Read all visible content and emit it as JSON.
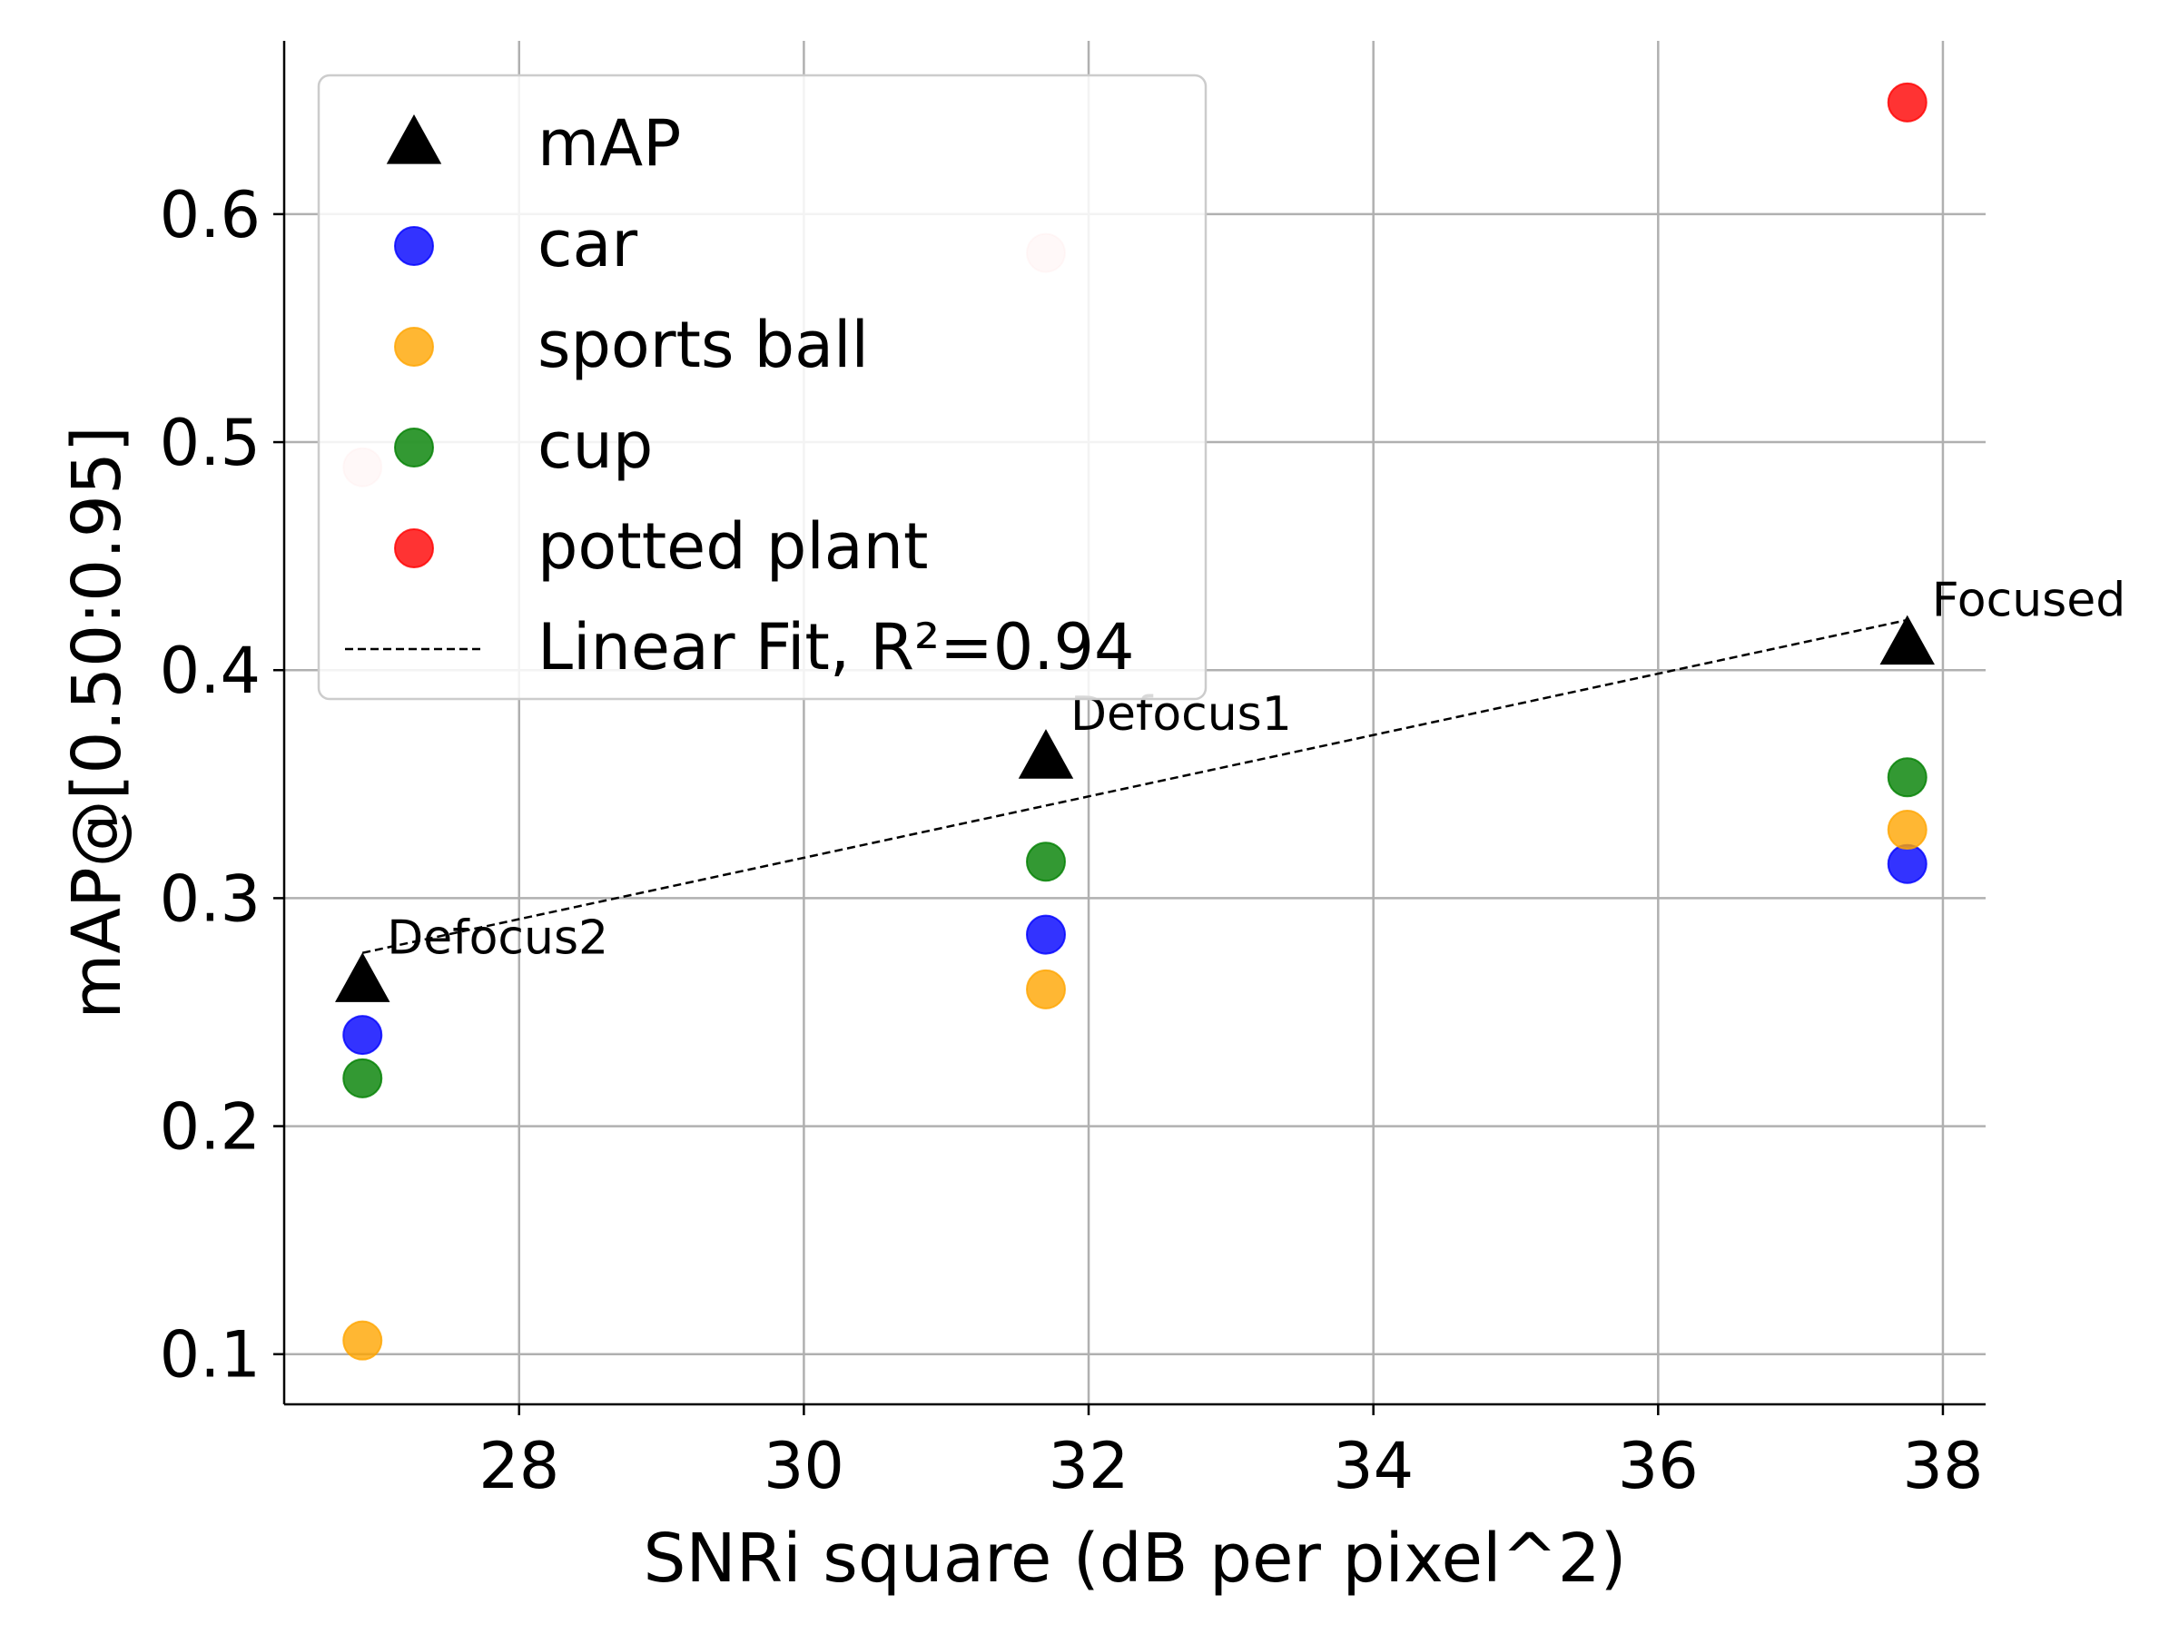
{
  "chart_data": {
    "type": "scatter",
    "xlabel": "SNRi square (dB per pixel^2)",
    "ylabel": "mAP@[0.50:0.95]",
    "xlim": [
      26.35,
      38.3
    ],
    "ylim": [
      0.078,
      0.676
    ],
    "xticks": [
      28,
      30,
      32,
      34,
      36,
      38
    ],
    "yticks": [
      0.1,
      0.2,
      0.3,
      0.4,
      0.5,
      0.6
    ],
    "xtick_labels": [
      "28",
      "30",
      "32",
      "34",
      "36",
      "38"
    ],
    "ytick_labels": [
      "0.1",
      "0.2",
      "0.3",
      "0.4",
      "0.5",
      "0.6"
    ],
    "grid": true,
    "legend_position": "top-left",
    "x": [
      26.9,
      31.7,
      37.75
    ],
    "series": [
      {
        "name": "mAP",
        "marker": "triangle",
        "color": "#000000",
        "values": [
          0.265,
          0.363,
          0.413
        ]
      },
      {
        "name": "car",
        "marker": "circle",
        "color": "#0000ff",
        "values": [
          0.24,
          0.284,
          0.315
        ]
      },
      {
        "name": "sports ball",
        "marker": "circle",
        "color": "#ffa500",
        "values": [
          0.106,
          0.26,
          0.33
        ]
      },
      {
        "name": "cup",
        "marker": "circle",
        "color": "#008000",
        "values": [
          0.221,
          0.316,
          0.353
        ]
      },
      {
        "name": "potted plant",
        "marker": "circle",
        "color": "#ff0000",
        "values": [
          0.489,
          0.583,
          0.649
        ]
      }
    ],
    "point_alpha": [
      0.18,
      0.18,
      0.8
    ],
    "fit": {
      "name": "Linear Fit, R²=0.94",
      "x": [
        26.9,
        37.75
      ],
      "y": [
        0.276,
        0.422
      ]
    },
    "annotations": [
      {
        "text": "Defocus2",
        "x": 26.9,
        "y": 0.265
      },
      {
        "text": "Defocus1",
        "x": 31.7,
        "y": 0.363
      },
      {
        "text": "Focused",
        "x": 37.75,
        "y": 0.413
      }
    ]
  }
}
